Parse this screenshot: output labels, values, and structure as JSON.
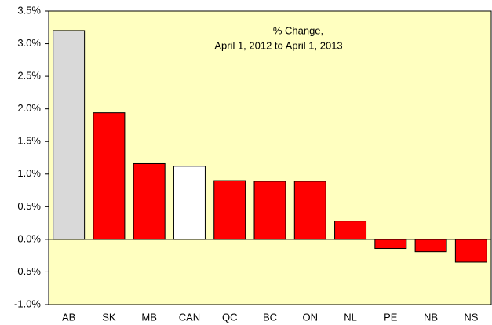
{
  "chart_data": {
    "type": "bar",
    "title": "% Change,",
    "subtitle": "April 1, 2012 to April 1, 2013",
    "categories": [
      "AB",
      "SK",
      "MB",
      "CAN",
      "QC",
      "BC",
      "ON",
      "NL",
      "PE",
      "NB",
      "NS"
    ],
    "values": [
      3.2,
      1.94,
      1.16,
      1.12,
      0.9,
      0.89,
      0.89,
      0.28,
      -0.14,
      -0.19,
      -0.35
    ],
    "colors": [
      "#d9d9d9",
      "#ff0000",
      "#ff0000",
      "#ffffff",
      "#ff0000",
      "#ff0000",
      "#ff0000",
      "#ff0000",
      "#ff0000",
      "#ff0000",
      "#ff0000"
    ],
    "ylim": [
      -1.0,
      3.5
    ],
    "yticks": [
      {
        "value": -1.0,
        "label": "-1.0%"
      },
      {
        "value": -0.5,
        "label": "-0.5%"
      },
      {
        "value": 0.0,
        "label": "0.0%"
      },
      {
        "value": 0.5,
        "label": "0.5%"
      },
      {
        "value": 1.0,
        "label": "1.0%"
      },
      {
        "value": 1.5,
        "label": "1.5%"
      },
      {
        "value": 2.0,
        "label": "2.0%"
      },
      {
        "value": 2.5,
        "label": "2.5%"
      },
      {
        "value": 3.0,
        "label": "3.0%"
      },
      {
        "value": 3.5,
        "label": "3.5%"
      }
    ],
    "grid": false
  }
}
